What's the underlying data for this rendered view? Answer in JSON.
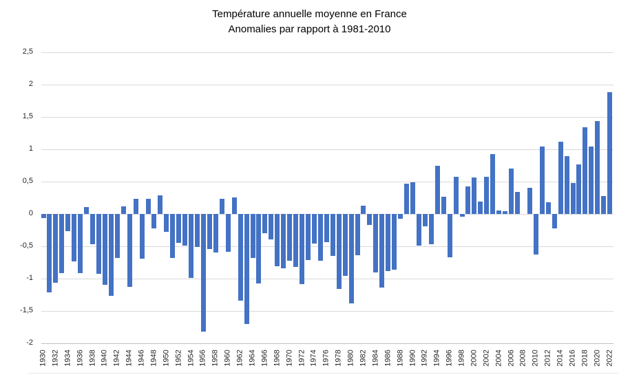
{
  "title": {
    "line1": "Température annuelle moyenne en France",
    "line2": "Anomalies par rapport à 1981-2010"
  },
  "chart_data": {
    "type": "bar",
    "title": "Température annuelle moyenne en France",
    "subtitle": "Anomalies par rapport à 1981-2010",
    "xlabel": "",
    "ylabel": "",
    "ylim": [
      -2,
      2.5
    ],
    "y_tick_step": 0.5,
    "y_tick_labels": [
      "2,5",
      "2",
      "1,5",
      "1",
      "0,5",
      "0",
      "-0,5",
      "-1",
      "-1,5",
      "-2"
    ],
    "x_tick_labels": [
      "1930",
      "1932",
      "1934",
      "1936",
      "1938",
      "1940",
      "1942",
      "1944",
      "1946",
      "1948",
      "1950",
      "1952",
      "1954",
      "1956",
      "1958",
      "1960",
      "1962",
      "1964",
      "1966",
      "1968",
      "1970",
      "1972",
      "1974",
      "1976",
      "1978",
      "1980",
      "1982",
      "1984",
      "1986",
      "1988",
      "1990",
      "1992",
      "1994",
      "1996",
      "1998",
      "2000",
      "2002",
      "2004",
      "2006",
      "2008",
      "2010",
      "2012",
      "2014",
      "2016",
      "2018",
      "2020",
      "2022"
    ],
    "years": [
      1930,
      1931,
      1932,
      1933,
      1934,
      1935,
      1936,
      1937,
      1938,
      1939,
      1940,
      1941,
      1942,
      1943,
      1944,
      1945,
      1946,
      1947,
      1948,
      1949,
      1950,
      1951,
      1952,
      1953,
      1954,
      1955,
      1956,
      1957,
      1958,
      1959,
      1960,
      1961,
      1962,
      1963,
      1964,
      1965,
      1966,
      1967,
      1968,
      1969,
      1970,
      1971,
      1972,
      1973,
      1974,
      1975,
      1976,
      1977,
      1978,
      1979,
      1980,
      1981,
      1982,
      1983,
      1984,
      1985,
      1986,
      1987,
      1988,
      1989,
      1990,
      1991,
      1992,
      1993,
      1994,
      1995,
      1996,
      1997,
      1998,
      1999,
      2000,
      2001,
      2002,
      2003,
      2004,
      2005,
      2006,
      2007,
      2008,
      2009,
      2010,
      2011,
      2012,
      2013,
      2014,
      2015,
      2016,
      2017,
      2018,
      2019,
      2020,
      2021,
      2022
    ],
    "values": [
      -0.06,
      -1.21,
      -1.06,
      -0.91,
      -0.27,
      -0.73,
      -0.92,
      0.11,
      -0.47,
      -0.93,
      -1.1,
      -1.27,
      -0.68,
      0.12,
      -1.13,
      0.23,
      -0.69,
      0.23,
      -0.22,
      0.29,
      -0.28,
      -0.68,
      -0.45,
      -0.49,
      -0.99,
      -0.51,
      -1.82,
      -0.54,
      -0.6,
      0.23,
      -0.58,
      0.25,
      -1.34,
      -1.7,
      -0.68,
      -1.07,
      -0.3,
      -0.39,
      -0.81,
      -0.84,
      -0.72,
      -0.82,
      -1.08,
      -0.71,
      -0.46,
      -0.72,
      -0.44,
      -0.65,
      -1.16,
      -0.96,
      -1.38,
      -0.64,
      0.13,
      -0.17,
      -0.9,
      -1.14,
      -0.88,
      -0.86,
      -0.07,
      0.47,
      0.49,
      -0.49,
      -0.19,
      -0.47,
      0.74,
      0.27,
      -0.67,
      0.57,
      -0.04,
      0.43,
      0.56,
      0.19,
      0.57,
      0.93,
      0.05,
      0.04,
      0.7,
      0.34,
      0.0,
      0.4,
      -0.63,
      1.04,
      0.18,
      -0.22,
      1.12,
      0.89,
      0.48,
      0.77,
      1.34,
      1.04,
      1.44,
      0.28,
      1.88
    ],
    "bar_color": "#4472C4",
    "gridline_color": "#D9D9D9",
    "axis_line_color": "#BFBFBF",
    "tick_label_color": "#262626",
    "grid": "horizontal",
    "legend": "none"
  }
}
